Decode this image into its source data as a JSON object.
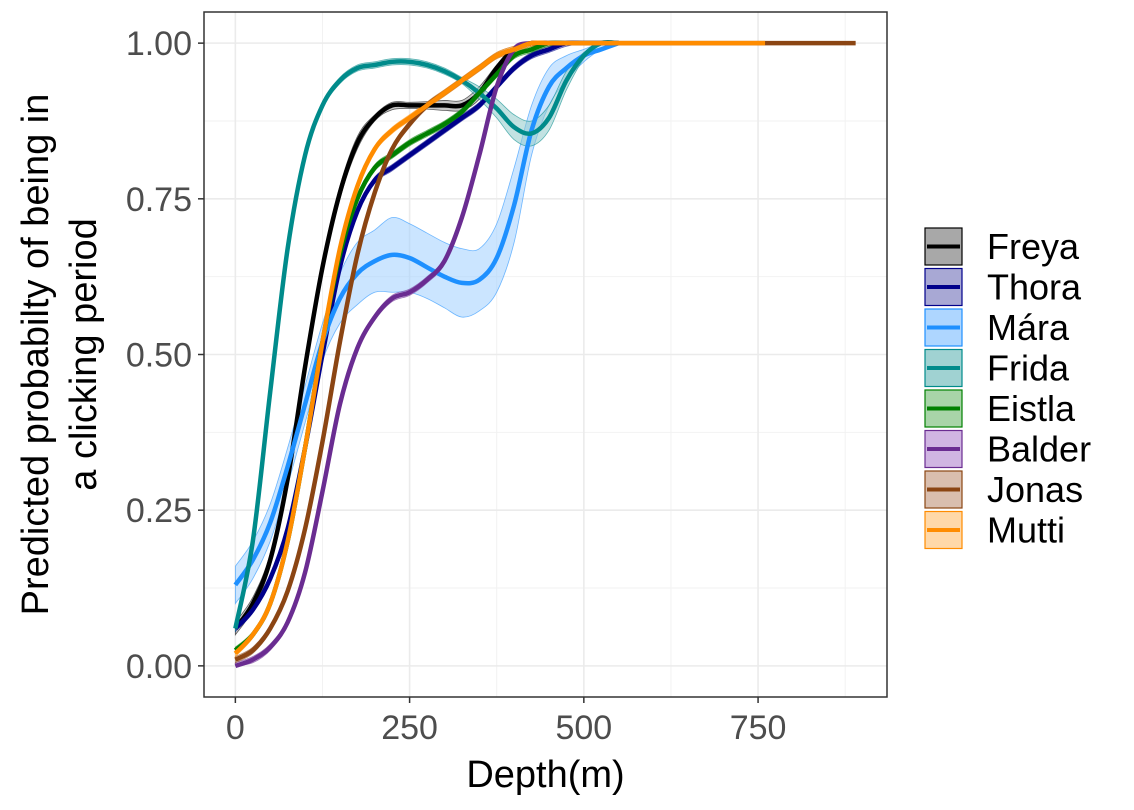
{
  "chart_data": {
    "type": "line",
    "title": "",
    "xlabel": "Depth(m)",
    "ylabel_lines": [
      "Predicted probabilty of being in",
      "a clicking period"
    ],
    "xlim": [
      -45,
      935
    ],
    "ylim": [
      -0.05,
      1.05
    ],
    "x_ticks": [
      0,
      250,
      500,
      750
    ],
    "x_tick_labels": [
      "0",
      "250",
      "500",
      "750"
    ],
    "y_ticks": [
      0,
      0.25,
      0.5,
      0.75,
      1
    ],
    "y_tick_labels": [
      "0.00",
      "0.25",
      "0.50",
      "0.75",
      "1.00"
    ],
    "grid": true,
    "legend_position": "right",
    "series": [
      {
        "name": "Freya",
        "color": "#000000",
        "fill": "#999999",
        "x": [
          0,
          25,
          50,
          75,
          100,
          125,
          150,
          175,
          200,
          225,
          250,
          275,
          300,
          325,
          350,
          375,
          400,
          425,
          450,
          475,
          500,
          525,
          550
        ],
        "y": [
          0.06,
          0.1,
          0.17,
          0.3,
          0.48,
          0.64,
          0.76,
          0.84,
          0.88,
          0.9,
          0.9,
          0.9,
          0.9,
          0.9,
          0.92,
          0.96,
          0.99,
          1.0,
          1.0,
          1.0,
          1.0,
          1.0,
          1.0
        ],
        "lower": [
          0.05,
          0.09,
          0.16,
          0.29,
          0.47,
          0.63,
          0.75,
          0.83,
          0.875,
          0.893,
          0.895,
          0.894,
          0.892,
          0.892,
          0.91,
          0.955,
          0.985,
          1.0,
          1.0,
          1.0,
          1.0,
          1.0,
          1.0
        ],
        "upper": [
          0.07,
          0.11,
          0.18,
          0.31,
          0.49,
          0.65,
          0.77,
          0.85,
          0.885,
          0.905,
          0.905,
          0.906,
          0.908,
          0.908,
          0.93,
          0.965,
          0.995,
          1.0,
          1.0,
          1.0,
          1.0,
          1.0,
          1.0
        ]
      },
      {
        "name": "Thora",
        "color": "#00008B",
        "fill": "#9999CC",
        "x": [
          0,
          25,
          50,
          75,
          100,
          125,
          150,
          175,
          200,
          225,
          250,
          275,
          300,
          325,
          350,
          375,
          400,
          425,
          450,
          475,
          500,
          525,
          550
        ],
        "y": [
          0.06,
          0.09,
          0.14,
          0.22,
          0.35,
          0.5,
          0.64,
          0.73,
          0.78,
          0.8,
          0.82,
          0.84,
          0.86,
          0.88,
          0.9,
          0.93,
          0.96,
          0.98,
          0.99,
          1.0,
          1.0,
          1.0,
          1.0
        ],
        "lower": [
          0.055,
          0.085,
          0.135,
          0.215,
          0.345,
          0.495,
          0.635,
          0.725,
          0.775,
          0.795,
          0.815,
          0.835,
          0.855,
          0.875,
          0.895,
          0.925,
          0.955,
          0.975,
          0.985,
          0.995,
          1.0,
          1.0,
          1.0
        ],
        "upper": [
          0.065,
          0.095,
          0.145,
          0.225,
          0.355,
          0.505,
          0.645,
          0.735,
          0.785,
          0.805,
          0.825,
          0.845,
          0.865,
          0.885,
          0.905,
          0.935,
          0.965,
          0.985,
          0.995,
          1.0,
          1.0,
          1.0,
          1.0
        ]
      },
      {
        "name": "Mára",
        "color": "#1E90FF",
        "fill": "#A0CFFF",
        "x": [
          0,
          25,
          50,
          75,
          100,
          125,
          150,
          175,
          200,
          225,
          250,
          275,
          300,
          325,
          350,
          375,
          400,
          425,
          450,
          475,
          500,
          525,
          550
        ],
        "y": [
          0.13,
          0.17,
          0.23,
          0.32,
          0.42,
          0.52,
          0.59,
          0.63,
          0.65,
          0.66,
          0.655,
          0.64,
          0.625,
          0.615,
          0.62,
          0.655,
          0.74,
          0.86,
          0.93,
          0.96,
          0.98,
          0.99,
          1.0
        ],
        "lower": [
          0.1,
          0.14,
          0.2,
          0.29,
          0.39,
          0.49,
          0.55,
          0.58,
          0.6,
          0.6,
          0.6,
          0.59,
          0.575,
          0.56,
          0.57,
          0.6,
          0.68,
          0.82,
          0.9,
          0.94,
          0.97,
          0.99,
          1.0
        ],
        "upper": [
          0.16,
          0.2,
          0.26,
          0.35,
          0.45,
          0.55,
          0.63,
          0.68,
          0.7,
          0.72,
          0.71,
          0.695,
          0.68,
          0.67,
          0.67,
          0.71,
          0.8,
          0.9,
          0.96,
          0.98,
          0.99,
          1.0,
          1.0
        ]
      },
      {
        "name": "Frida",
        "color": "#008B8B",
        "fill": "#8FCACA",
        "x": [
          0,
          25,
          50,
          75,
          100,
          125,
          150,
          175,
          200,
          225,
          250,
          275,
          300,
          325,
          350,
          375,
          400,
          425,
          450,
          475,
          500,
          525,
          550
        ],
        "y": [
          0.06,
          0.2,
          0.44,
          0.67,
          0.82,
          0.9,
          0.94,
          0.96,
          0.965,
          0.97,
          0.97,
          0.965,
          0.955,
          0.94,
          0.92,
          0.895,
          0.865,
          0.855,
          0.88,
          0.94,
          0.98,
          1.0,
          1.0
        ],
        "lower": [
          0.055,
          0.195,
          0.435,
          0.665,
          0.815,
          0.895,
          0.935,
          0.955,
          0.96,
          0.965,
          0.965,
          0.96,
          0.95,
          0.935,
          0.91,
          0.88,
          0.845,
          0.835,
          0.86,
          0.925,
          0.975,
          1.0,
          1.0
        ],
        "upper": [
          0.065,
          0.205,
          0.445,
          0.675,
          0.825,
          0.905,
          0.945,
          0.965,
          0.97,
          0.975,
          0.975,
          0.97,
          0.96,
          0.945,
          0.93,
          0.91,
          0.885,
          0.875,
          0.9,
          0.955,
          0.985,
          1.0,
          1.0
        ]
      },
      {
        "name": "Eistla",
        "color": "#008000",
        "fill": "#99CC99",
        "x": [
          0,
          25,
          50,
          75,
          100,
          125,
          150,
          175,
          200,
          225,
          250,
          275,
          300,
          325,
          350,
          375,
          400,
          425,
          450,
          475,
          500,
          525,
          550
        ],
        "y": [
          0.025,
          0.05,
          0.1,
          0.2,
          0.35,
          0.52,
          0.66,
          0.75,
          0.8,
          0.82,
          0.84,
          0.855,
          0.87,
          0.89,
          0.92,
          0.95,
          0.98,
          0.99,
          1.0,
          1.0,
          1.0,
          1.0,
          1.0
        ],
        "lower": [
          0.02,
          0.045,
          0.095,
          0.195,
          0.345,
          0.515,
          0.655,
          0.745,
          0.795,
          0.815,
          0.835,
          0.85,
          0.865,
          0.885,
          0.915,
          0.945,
          0.975,
          0.985,
          0.995,
          1.0,
          1.0,
          1.0,
          1.0
        ],
        "upper": [
          0.03,
          0.055,
          0.105,
          0.205,
          0.355,
          0.525,
          0.665,
          0.755,
          0.805,
          0.825,
          0.845,
          0.86,
          0.875,
          0.895,
          0.925,
          0.955,
          0.985,
          0.995,
          1.0,
          1.0,
          1.0,
          1.0,
          1.0
        ]
      },
      {
        "name": "Balder",
        "color": "#6A2C91",
        "fill": "#C8A8DD",
        "x": [
          0,
          25,
          50,
          75,
          100,
          125,
          150,
          175,
          200,
          225,
          250,
          275,
          300,
          325,
          350,
          375,
          400,
          425,
          450,
          475,
          500,
          525,
          550
        ],
        "y": [
          0.0,
          0.01,
          0.03,
          0.07,
          0.15,
          0.28,
          0.42,
          0.51,
          0.56,
          0.59,
          0.6,
          0.62,
          0.65,
          0.72,
          0.82,
          0.93,
          0.99,
          1.0,
          1.0,
          1.0,
          1.0,
          1.0,
          1.0
        ],
        "lower": [
          0.0,
          0.005,
          0.025,
          0.065,
          0.145,
          0.275,
          0.415,
          0.505,
          0.555,
          0.585,
          0.595,
          0.615,
          0.645,
          0.715,
          0.815,
          0.925,
          0.985,
          1.0,
          1.0,
          1.0,
          1.0,
          1.0,
          1.0
        ],
        "upper": [
          0.005,
          0.015,
          0.035,
          0.075,
          0.155,
          0.285,
          0.425,
          0.515,
          0.565,
          0.595,
          0.605,
          0.625,
          0.655,
          0.725,
          0.825,
          0.935,
          0.995,
          1.0,
          1.0,
          1.0,
          1.0,
          1.0,
          1.0
        ]
      },
      {
        "name": "Jonas",
        "color": "#8B4513",
        "fill": "#D2B3A0",
        "x": [
          0,
          25,
          50,
          75,
          100,
          125,
          150,
          175,
          200,
          225,
          250,
          275,
          300,
          325,
          350,
          375,
          400,
          425,
          450,
          475,
          500,
          550,
          600,
          650,
          700,
          750,
          800,
          850,
          890
        ],
        "y": [
          0.01,
          0.025,
          0.06,
          0.12,
          0.22,
          0.36,
          0.52,
          0.66,
          0.76,
          0.83,
          0.87,
          0.9,
          0.92,
          0.94,
          0.96,
          0.98,
          0.99,
          1.0,
          1.0,
          1.0,
          1.0,
          1.0,
          1.0,
          1.0,
          1.0,
          1.0,
          1.0,
          1.0,
          1.0
        ],
        "lower": [
          0.005,
          0.02,
          0.055,
          0.115,
          0.215,
          0.355,
          0.515,
          0.655,
          0.755,
          0.825,
          0.865,
          0.895,
          0.915,
          0.935,
          0.955,
          0.975,
          0.985,
          0.995,
          1.0,
          1.0,
          1.0,
          1.0,
          1.0,
          1.0,
          1.0,
          1.0,
          1.0,
          1.0,
          1.0
        ],
        "upper": [
          0.015,
          0.03,
          0.065,
          0.125,
          0.225,
          0.365,
          0.525,
          0.665,
          0.765,
          0.835,
          0.875,
          0.905,
          0.925,
          0.945,
          0.965,
          0.985,
          0.995,
          1.0,
          1.0,
          1.0,
          1.0,
          1.0,
          1.0,
          1.0,
          1.0,
          1.0,
          1.0,
          1.0,
          1.0
        ]
      },
      {
        "name": "Mutti",
        "color": "#FF8C00",
        "fill": "#FFD199",
        "x": [
          0,
          25,
          50,
          75,
          100,
          125,
          150,
          175,
          200,
          225,
          250,
          275,
          300,
          325,
          350,
          375,
          400,
          425,
          450,
          475,
          500,
          550,
          600,
          650,
          700,
          750,
          760
        ],
        "y": [
          0.02,
          0.05,
          0.1,
          0.2,
          0.35,
          0.52,
          0.67,
          0.77,
          0.83,
          0.86,
          0.88,
          0.9,
          0.92,
          0.94,
          0.96,
          0.98,
          0.99,
          1.0,
          1.0,
          1.0,
          1.0,
          1.0,
          1.0,
          1.0,
          1.0,
          1.0,
          1.0
        ],
        "lower": [
          0.015,
          0.045,
          0.095,
          0.195,
          0.345,
          0.515,
          0.665,
          0.765,
          0.825,
          0.855,
          0.875,
          0.895,
          0.915,
          0.935,
          0.955,
          0.975,
          0.985,
          0.995,
          1.0,
          1.0,
          1.0,
          1.0,
          1.0,
          1.0,
          1.0,
          1.0,
          1.0
        ],
        "upper": [
          0.025,
          0.055,
          0.105,
          0.205,
          0.355,
          0.525,
          0.675,
          0.775,
          0.835,
          0.865,
          0.885,
          0.905,
          0.925,
          0.945,
          0.965,
          0.985,
          0.995,
          1.0,
          1.0,
          1.0,
          1.0,
          1.0,
          1.0,
          1.0,
          1.0,
          1.0,
          1.0
        ]
      }
    ]
  }
}
